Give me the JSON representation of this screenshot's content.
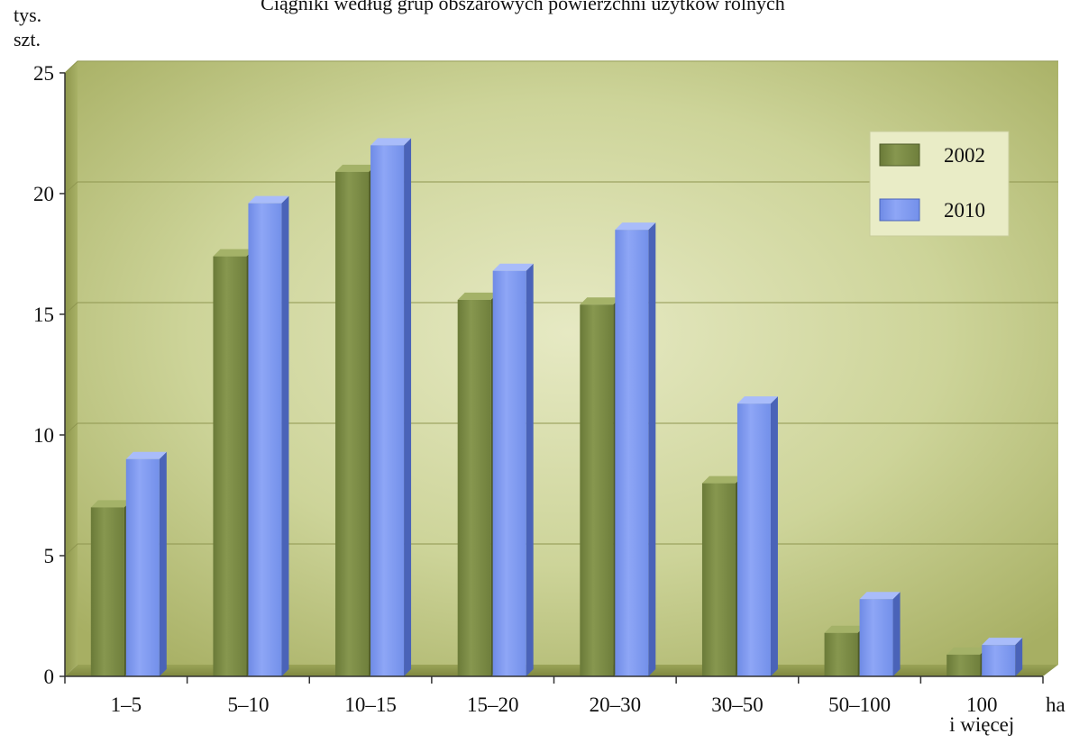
{
  "chart_data": {
    "type": "bar",
    "title": "Ciągniki według grup obszarowych powierzchni użytków rolnych",
    "ylabel": [
      "tys.",
      "szt."
    ],
    "xlabel": "ha",
    "categories": [
      [
        "1–5"
      ],
      [
        "5–10"
      ],
      [
        "10–15"
      ],
      [
        "15–20"
      ],
      [
        "20–30"
      ],
      [
        "30–50"
      ],
      [
        "50–100"
      ],
      [
        "100",
        "i więcej"
      ]
    ],
    "series": [
      {
        "name": "2002",
        "color": "#7a8a46",
        "values": [
          7.0,
          17.4,
          20.9,
          15.6,
          15.4,
          8.0,
          1.8,
          0.9
        ]
      },
      {
        "name": "2010",
        "color": "#7f99f0",
        "values": [
          9.0,
          19.6,
          22.0,
          16.8,
          18.5,
          11.3,
          3.2,
          1.3
        ]
      }
    ],
    "ylim": [
      0,
      25
    ],
    "yticks": [
      0,
      5,
      10,
      15,
      20,
      25
    ],
    "grid": true,
    "legend_position": "top-right"
  }
}
